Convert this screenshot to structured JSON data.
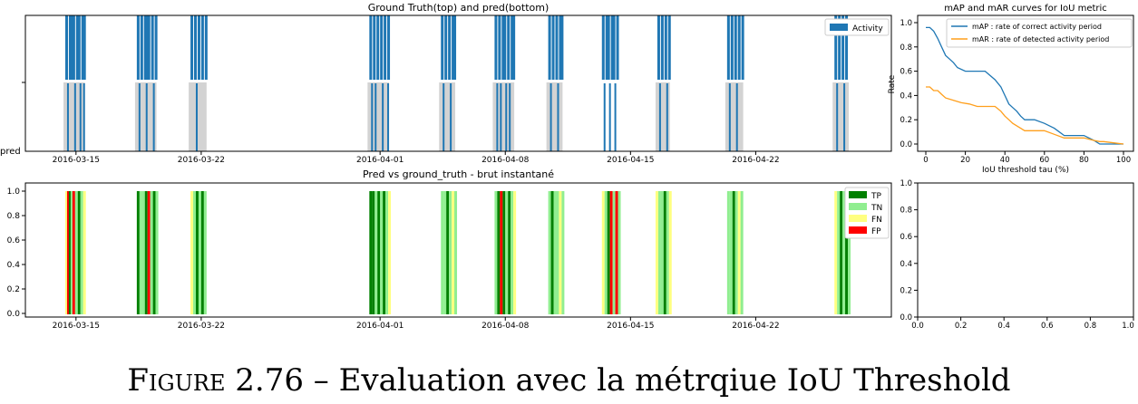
{
  "figure": {
    "caption_prefix": "Figure 2.76",
    "caption_rest": " – Evaluation avec la métrqiue IoU Threshold"
  },
  "colors": {
    "activity": "#1f77b4",
    "pred_bg": "#d3d3d3",
    "TP": "#008000",
    "TN": "#90ee90",
    "FN": "#ffff80",
    "FP": "#ff0000",
    "mAP": "#1f77b4",
    "mAR": "#ff9f1c"
  },
  "chart_data": [
    {
      "id": "timeline",
      "type": "bar",
      "title": "Ground Truth(top) and pred(bottom)",
      "ylabel_bottom": "pred",
      "xticks": [
        "2016-03-15",
        "2016-03-22",
        "2016-04-01",
        "2016-04-08",
        "2016-04-15",
        "2016-04-22"
      ],
      "xtick_days": [
        14,
        21,
        31,
        38,
        45,
        52
      ],
      "xlim_days": [
        11,
        57
      ],
      "legend": [
        "Activity"
      ],
      "legend_position": "top-right",
      "periods_days": [
        [
          13.3,
          14.5
        ],
        [
          17.3,
          18.5
        ],
        [
          20.3,
          21.3
        ],
        [
          30.3,
          31.5
        ],
        [
          34.3,
          35.2
        ],
        [
          37.3,
          38.5
        ],
        [
          40.3,
          41.2
        ],
        [
          46.4,
          47.2
        ],
        [
          50.3,
          51.3
        ],
        [
          56.3,
          57.2
        ]
      ],
      "ground_truth_bars_days": [
        13.4,
        13.6,
        13.7,
        13.8,
        14.0,
        14.1,
        14.3,
        14.4,
        17.4,
        17.6,
        17.8,
        17.9,
        18.0,
        18.2,
        18.4,
        20.4,
        20.6,
        20.8,
        21.0,
        21.2,
        30.4,
        30.6,
        30.8,
        31.0,
        31.2,
        31.4,
        34.4,
        34.6,
        34.8,
        35.0,
        35.1,
        37.4,
        37.6,
        37.8,
        37.9,
        38.1,
        38.3,
        38.4,
        40.4,
        40.6,
        40.8,
        41.0,
        41.1,
        43.4,
        43.6,
        43.7,
        43.9,
        44.0,
        44.2,
        46.5,
        46.7,
        46.9,
        47.1,
        50.4,
        50.6,
        50.8,
        51.0,
        51.2,
        56.4,
        56.6,
        56.8,
        57.0
      ],
      "pred_bars_days": [
        13.5,
        13.9,
        14.2,
        14.4,
        17.5,
        17.9,
        18.3,
        20.7,
        30.5,
        30.7,
        31.1,
        31.4,
        34.5,
        34.9,
        37.5,
        37.7,
        38.0,
        38.2,
        40.5,
        40.9,
        43.5,
        43.8,
        44.1,
        46.6,
        47.0,
        50.5,
        50.9,
        56.5,
        56.9
      ]
    },
    {
      "id": "metrics",
      "type": "line",
      "title": "mAP and mAR curves for IoU metric",
      "xlabel": "IoU threshold tau (%)",
      "ylabel": "Rate",
      "xlim": [
        0,
        100
      ],
      "ylim": [
        0,
        1
      ],
      "xticks": [
        "0",
        "20",
        "40",
        "60",
        "80",
        "100"
      ],
      "yticks": [
        "0.0",
        "0.2",
        "0.4",
        "0.6",
        "0.8",
        "1.0"
      ],
      "legend_position": "top-right",
      "series": [
        {
          "name": "mAP : rate of correct activity period",
          "x": [
            0,
            2,
            4,
            6,
            8,
            10,
            12,
            14,
            16,
            20,
            24,
            30,
            35,
            38,
            40,
            42,
            44,
            46,
            48,
            50,
            55,
            60,
            65,
            70,
            75,
            80,
            85,
            88,
            90,
            95,
            100
          ],
          "y": [
            0.96,
            0.96,
            0.93,
            0.87,
            0.8,
            0.73,
            0.7,
            0.67,
            0.63,
            0.6,
            0.6,
            0.6,
            0.53,
            0.47,
            0.4,
            0.33,
            0.3,
            0.27,
            0.23,
            0.2,
            0.2,
            0.17,
            0.13,
            0.07,
            0.07,
            0.07,
            0.03,
            0.0,
            0.0,
            0.0,
            0.0
          ]
        },
        {
          "name": "mAR : rate of detected activity period",
          "x": [
            0,
            2,
            4,
            6,
            8,
            10,
            14,
            18,
            22,
            26,
            30,
            35,
            38,
            40,
            42,
            44,
            46,
            48,
            50,
            60,
            65,
            70,
            75,
            80,
            85,
            88,
            90,
            95,
            100
          ],
          "y": [
            0.47,
            0.47,
            0.44,
            0.44,
            0.41,
            0.38,
            0.36,
            0.34,
            0.33,
            0.31,
            0.31,
            0.31,
            0.27,
            0.23,
            0.2,
            0.17,
            0.15,
            0.13,
            0.11,
            0.11,
            0.08,
            0.05,
            0.05,
            0.05,
            0.03,
            0.02,
            0.02,
            0.01,
            0.0
          ]
        }
      ]
    },
    {
      "id": "confusion",
      "type": "bar",
      "title": "Pred vs ground_truth - brut instantané",
      "xticks": [
        "2016-03-15",
        "2016-03-22",
        "2016-04-01",
        "2016-04-08",
        "2016-04-15",
        "2016-04-22"
      ],
      "yticks": [
        "0.0",
        "0.2",
        "0.4",
        "0.6",
        "0.8",
        "1.0"
      ],
      "ylim": [
        0,
        1
      ],
      "legend": [
        "TP",
        "TN",
        "FN",
        "FP"
      ],
      "legend_position": "top-right",
      "segments": [
        {
          "day": 13.4,
          "cls": "FN"
        },
        {
          "day": 13.5,
          "cls": "FP"
        },
        {
          "day": 13.6,
          "cls": "TP"
        },
        {
          "day": 13.7,
          "cls": "TN"
        },
        {
          "day": 13.8,
          "cls": "FP"
        },
        {
          "day": 13.95,
          "cls": "TN"
        },
        {
          "day": 14.1,
          "cls": "TP"
        },
        {
          "day": 14.25,
          "cls": "TN"
        },
        {
          "day": 14.4,
          "cls": "FN"
        },
        {
          "day": 17.4,
          "cls": "TP"
        },
        {
          "day": 17.55,
          "cls": "TN"
        },
        {
          "day": 17.7,
          "cls": "TN"
        },
        {
          "day": 17.85,
          "cls": "TP"
        },
        {
          "day": 18.0,
          "cls": "FP"
        },
        {
          "day": 18.15,
          "cls": "TN"
        },
        {
          "day": 18.3,
          "cls": "TP"
        },
        {
          "day": 18.45,
          "cls": "TN"
        },
        {
          "day": 20.4,
          "cls": "FN"
        },
        {
          "day": 20.55,
          "cls": "TN"
        },
        {
          "day": 20.7,
          "cls": "TP"
        },
        {
          "day": 20.85,
          "cls": "TN"
        },
        {
          "day": 21.0,
          "cls": "TP"
        },
        {
          "day": 21.15,
          "cls": "TN"
        },
        {
          "day": 30.4,
          "cls": "TP"
        },
        {
          "day": 30.55,
          "cls": "TP"
        },
        {
          "day": 30.7,
          "cls": "TN"
        },
        {
          "day": 30.85,
          "cls": "TP"
        },
        {
          "day": 31.0,
          "cls": "TN"
        },
        {
          "day": 31.15,
          "cls": "TP"
        },
        {
          "day": 31.3,
          "cls": "TN"
        },
        {
          "day": 31.45,
          "cls": "FN"
        },
        {
          "day": 34.4,
          "cls": "TN"
        },
        {
          "day": 34.55,
          "cls": "TN"
        },
        {
          "day": 34.7,
          "cls": "TP"
        },
        {
          "day": 34.85,
          "cls": "TN"
        },
        {
          "day": 35.0,
          "cls": "FN"
        },
        {
          "day": 35.15,
          "cls": "TN"
        },
        {
          "day": 37.4,
          "cls": "TN"
        },
        {
          "day": 37.55,
          "cls": "TP"
        },
        {
          "day": 37.7,
          "cls": "FP"
        },
        {
          "day": 37.85,
          "cls": "TP"
        },
        {
          "day": 38.0,
          "cls": "TN"
        },
        {
          "day": 38.15,
          "cls": "TP"
        },
        {
          "day": 38.3,
          "cls": "TN"
        },
        {
          "day": 38.45,
          "cls": "FN"
        },
        {
          "day": 40.4,
          "cls": "TN"
        },
        {
          "day": 40.55,
          "cls": "TP"
        },
        {
          "day": 40.7,
          "cls": "TN"
        },
        {
          "day": 40.85,
          "cls": "TN"
        },
        {
          "day": 41.0,
          "cls": "FN"
        },
        {
          "day": 41.15,
          "cls": "TN"
        },
        {
          "day": 43.4,
          "cls": "FN"
        },
        {
          "day": 43.55,
          "cls": "TN"
        },
        {
          "day": 43.7,
          "cls": "TP"
        },
        {
          "day": 43.85,
          "cls": "FP"
        },
        {
          "day": 44.0,
          "cls": "TN"
        },
        {
          "day": 44.15,
          "cls": "FP"
        },
        {
          "day": 44.3,
          "cls": "TN"
        },
        {
          "day": 46.4,
          "cls": "FN"
        },
        {
          "day": 46.55,
          "cls": "TN"
        },
        {
          "day": 46.7,
          "cls": "TN"
        },
        {
          "day": 46.85,
          "cls": "TP"
        },
        {
          "day": 47.0,
          "cls": "TN"
        },
        {
          "day": 47.15,
          "cls": "FN"
        },
        {
          "day": 50.4,
          "cls": "TN"
        },
        {
          "day": 50.55,
          "cls": "TN"
        },
        {
          "day": 50.7,
          "cls": "TP"
        },
        {
          "day": 50.85,
          "cls": "TN"
        },
        {
          "day": 51.0,
          "cls": "FN"
        },
        {
          "day": 51.15,
          "cls": "TN"
        },
        {
          "day": 56.4,
          "cls": "FN"
        },
        {
          "day": 56.55,
          "cls": "TN"
        },
        {
          "day": 56.7,
          "cls": "TP"
        },
        {
          "day": 56.85,
          "cls": "TN"
        },
        {
          "day": 57.0,
          "cls": "TP"
        },
        {
          "day": 57.15,
          "cls": "TN"
        }
      ]
    },
    {
      "id": "empty",
      "type": "scatter",
      "xlim": [
        0,
        1
      ],
      "ylim": [
        0,
        1
      ],
      "xticks": [
        "0.0",
        "0.2",
        "0.4",
        "0.6",
        "0.8",
        "1.0"
      ],
      "yticks": [
        "0.0",
        "0.2",
        "0.4",
        "0.6",
        "0.8",
        "1.0"
      ]
    }
  ]
}
